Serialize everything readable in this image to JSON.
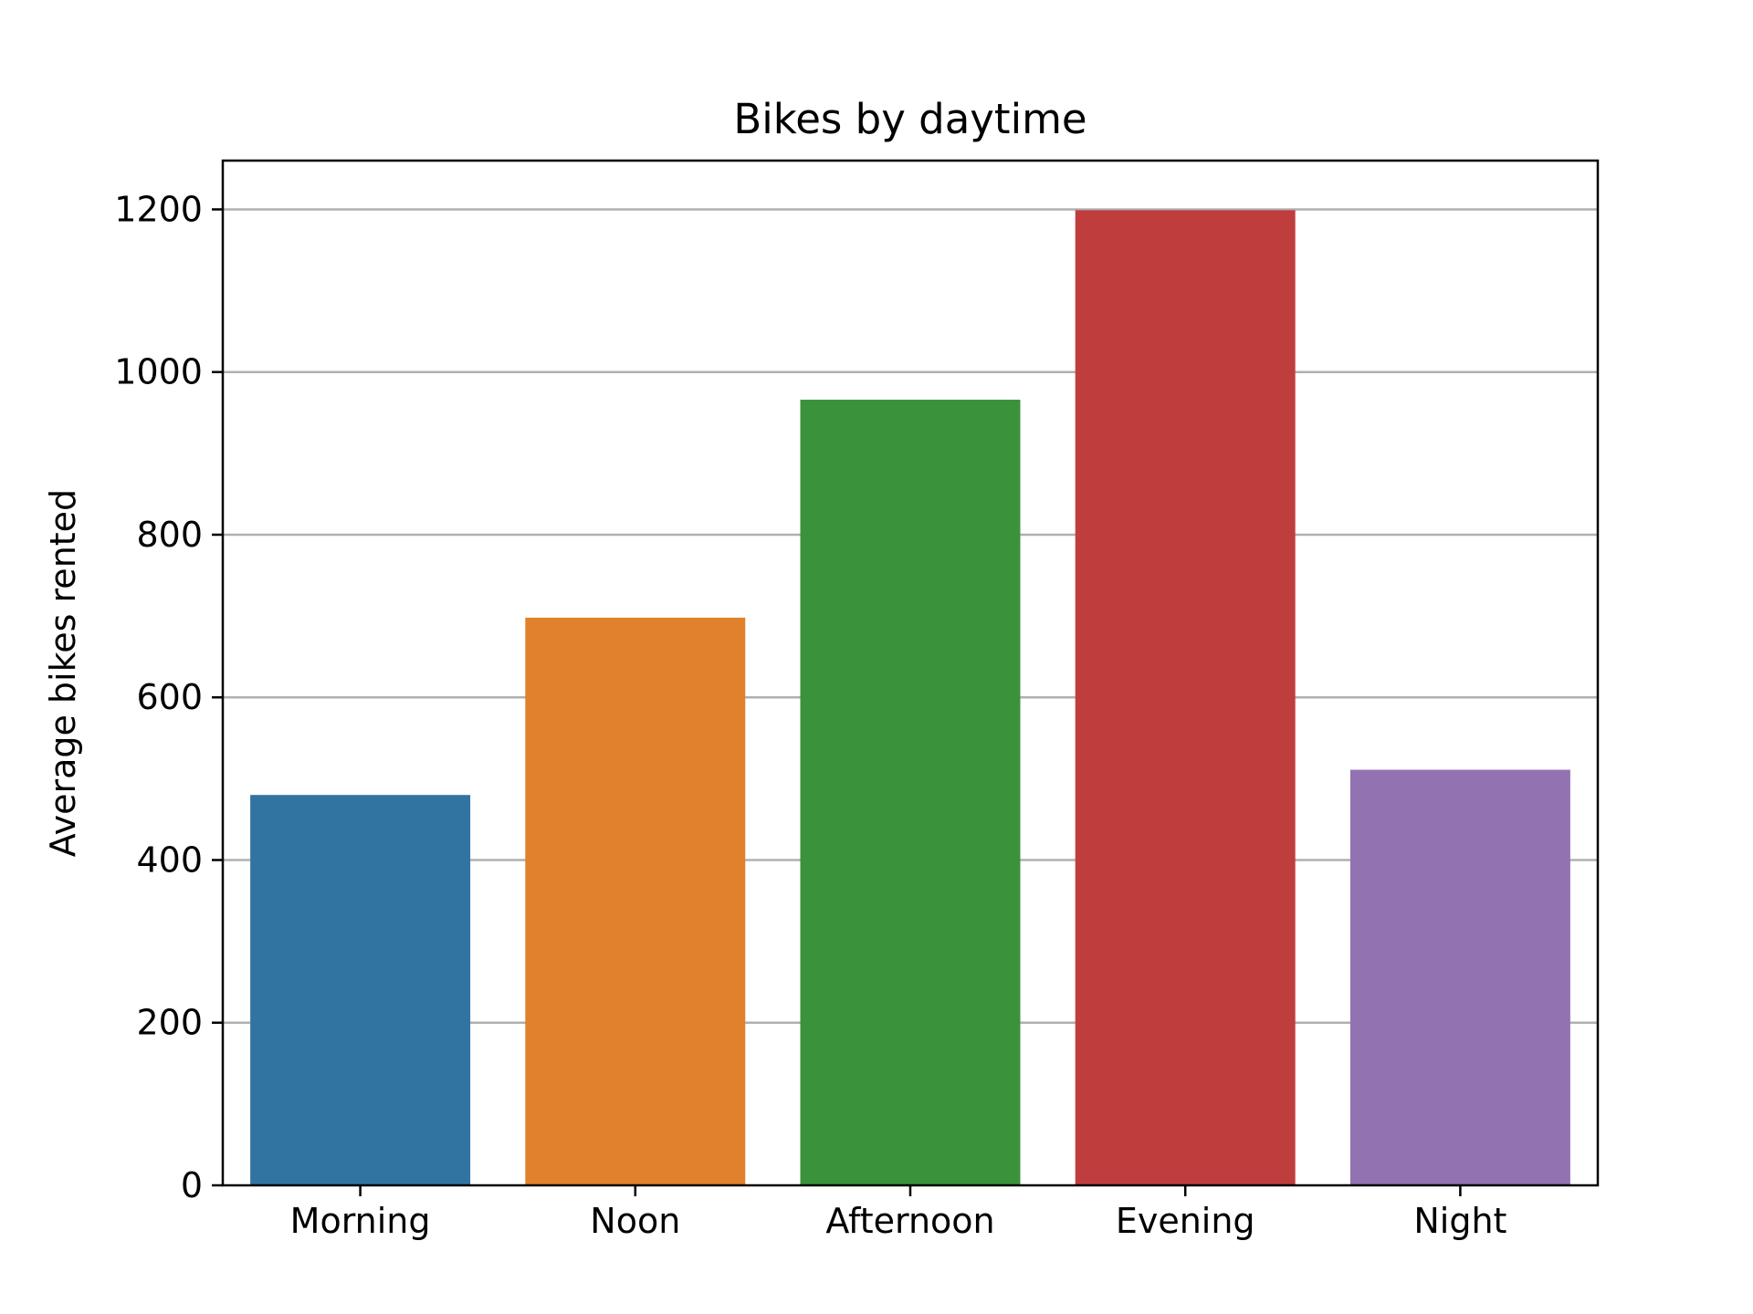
{
  "chart_data": {
    "type": "bar",
    "title": "Bikes by daytime",
    "xlabel": "",
    "ylabel": "Average bikes rented",
    "categories": [
      "Morning",
      "Noon",
      "Afternoon",
      "Evening",
      "Night"
    ],
    "values": [
      480,
      698,
      966,
      1199,
      511
    ],
    "colors": [
      "#3274a1",
      "#e1812c",
      "#3a923a",
      "#c03d3e",
      "#9372b2"
    ],
    "ylim": [
      0,
      1260
    ],
    "yticks": [
      0,
      200,
      400,
      600,
      800,
      1000,
      1200
    ],
    "grid": "y",
    "gridColor": "#b0b0b0",
    "legend": "none"
  }
}
